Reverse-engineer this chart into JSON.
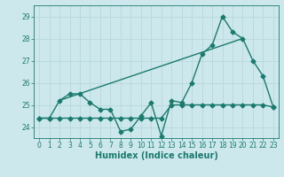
{
  "xlabel": "Humidex (Indice chaleur)",
  "background_color": "#cce8ec",
  "grid_color": "#b8d8dc",
  "line_color": "#1a7a6e",
  "xlim": [
    -0.5,
    23.5
  ],
  "ylim": [
    23.5,
    29.5
  ],
  "yticks": [
    24,
    25,
    26,
    27,
    28,
    29
  ],
  "xticks": [
    0,
    1,
    2,
    3,
    4,
    5,
    6,
    7,
    8,
    9,
    10,
    11,
    12,
    13,
    14,
    15,
    16,
    17,
    18,
    19,
    20,
    21,
    22,
    23
  ],
  "series1_x": [
    0,
    1,
    2,
    3,
    4,
    5,
    6,
    7,
    8,
    9,
    10,
    11,
    12,
    13,
    14,
    15,
    16,
    17,
    18,
    19,
    20,
    21,
    22,
    23
  ],
  "series1_y": [
    24.4,
    24.4,
    25.2,
    25.5,
    25.5,
    25.1,
    24.8,
    24.8,
    23.8,
    23.9,
    24.5,
    25.1,
    23.6,
    25.2,
    25.1,
    26.0,
    27.3,
    27.7,
    29.0,
    28.3,
    28.0,
    27.0,
    26.3,
    24.9
  ],
  "series2_x": [
    0,
    1,
    2,
    3,
    4,
    5,
    6,
    7,
    8,
    9,
    10,
    11,
    12,
    13,
    14,
    15,
    16,
    17,
    18,
    19,
    20,
    21,
    22,
    23
  ],
  "series2_y": [
    24.4,
    24.4,
    24.4,
    24.4,
    24.4,
    24.4,
    24.4,
    24.4,
    24.4,
    24.4,
    24.4,
    24.4,
    24.4,
    25.0,
    25.0,
    25.0,
    25.0,
    25.0,
    25.0,
    25.0,
    25.0,
    25.0,
    25.0,
    24.9
  ],
  "series3_x": [
    2,
    20
  ],
  "series3_y": [
    25.2,
    28.0
  ],
  "line_width": 1.0,
  "marker_size": 2.5,
  "title_fontsize": 7,
  "label_fontsize": 7,
  "tick_fontsize": 5.5
}
